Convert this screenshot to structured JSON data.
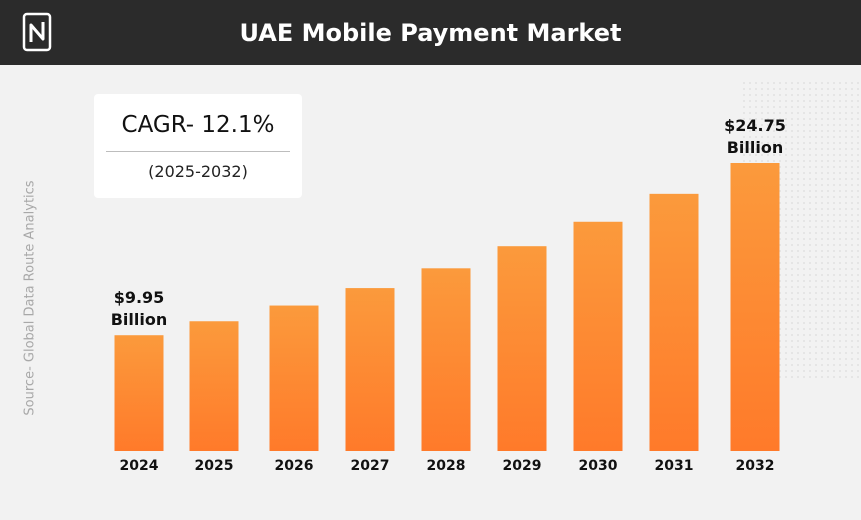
{
  "header": {
    "title": "UAE Mobile Payment Market",
    "logo_icon": "logo-icon"
  },
  "cagr": {
    "label": "CAGR- 12.1%",
    "period": "(2025-2032)"
  },
  "source": "Source- Global Data Route Analytics",
  "colors": {
    "header_bg": "#2b2b2b",
    "bar_top": "#fb9a3c",
    "bar_bottom": "#ff7a2a",
    "background": "#f2f2f2"
  },
  "chart_data": {
    "type": "bar",
    "title": "UAE Mobile Payment Market",
    "categories": [
      "2024",
      "2025",
      "2026",
      "2027",
      "2028",
      "2029",
      "2030",
      "2031",
      "2032"
    ],
    "values": [
      9.95,
      11.15,
      12.5,
      14.0,
      15.7,
      17.6,
      19.7,
      22.1,
      24.75
    ],
    "unit": "Billion",
    "labels": [
      {
        "category": "2024",
        "lines": [
          "$9.95",
          "Billion"
        ]
      },
      {
        "category": "2032",
        "lines": [
          "$24.75",
          "Billion"
        ]
      }
    ],
    "xlabel": "",
    "ylabel": "",
    "ylim": [
      0,
      24.75
    ],
    "grid": false,
    "legend": "none"
  }
}
